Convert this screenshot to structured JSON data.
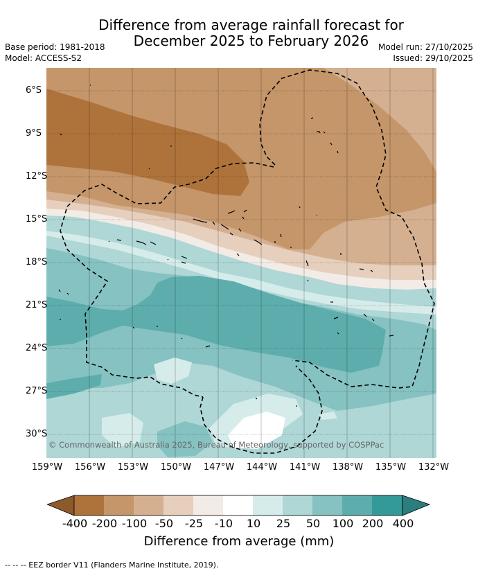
{
  "title_line1": "Difference from average rainfall forecast for",
  "title_line2": "December 2025 to February 2026",
  "base_period": "Base period: 1981-2018",
  "model": "Model: ACCESS-S2",
  "model_run": "Model run: 27/10/2025",
  "issued": "Issued: 29/10/2025",
  "lat_labels": [
    "6°S",
    "9°S",
    "12°S",
    "15°S",
    "18°S",
    "21°S",
    "24°S",
    "27°S",
    "30°S"
  ],
  "lon_labels": [
    "159°W",
    "156°W",
    "153°W",
    "150°W",
    "147°W",
    "144°W",
    "141°W",
    "138°W",
    "135°W",
    "132°W"
  ],
  "copyright": "© Commonwealth of Australia 2025, Bureau of Meteorology, supported by COSPPac",
  "colorbar": {
    "labels": [
      "-400",
      "-200",
      "-100",
      "-50",
      "-25",
      "-10",
      "10",
      "25",
      "50",
      "100",
      "200",
      "400"
    ],
    "colors": [
      "#8c5a2b",
      "#ae733b",
      "#c4966a",
      "#d4b090",
      "#e6d0bd",
      "#f2ebe6",
      "#ffffff",
      "#d6ecea",
      "#aed7d6",
      "#85c2c1",
      "#5eadad",
      "#349a99",
      "#2a7f7e"
    ],
    "title": "Difference from average (mm)"
  },
  "footnote": "--  --  -- EEZ border V11 (Flanders Marine Institute, 2019)."
}
